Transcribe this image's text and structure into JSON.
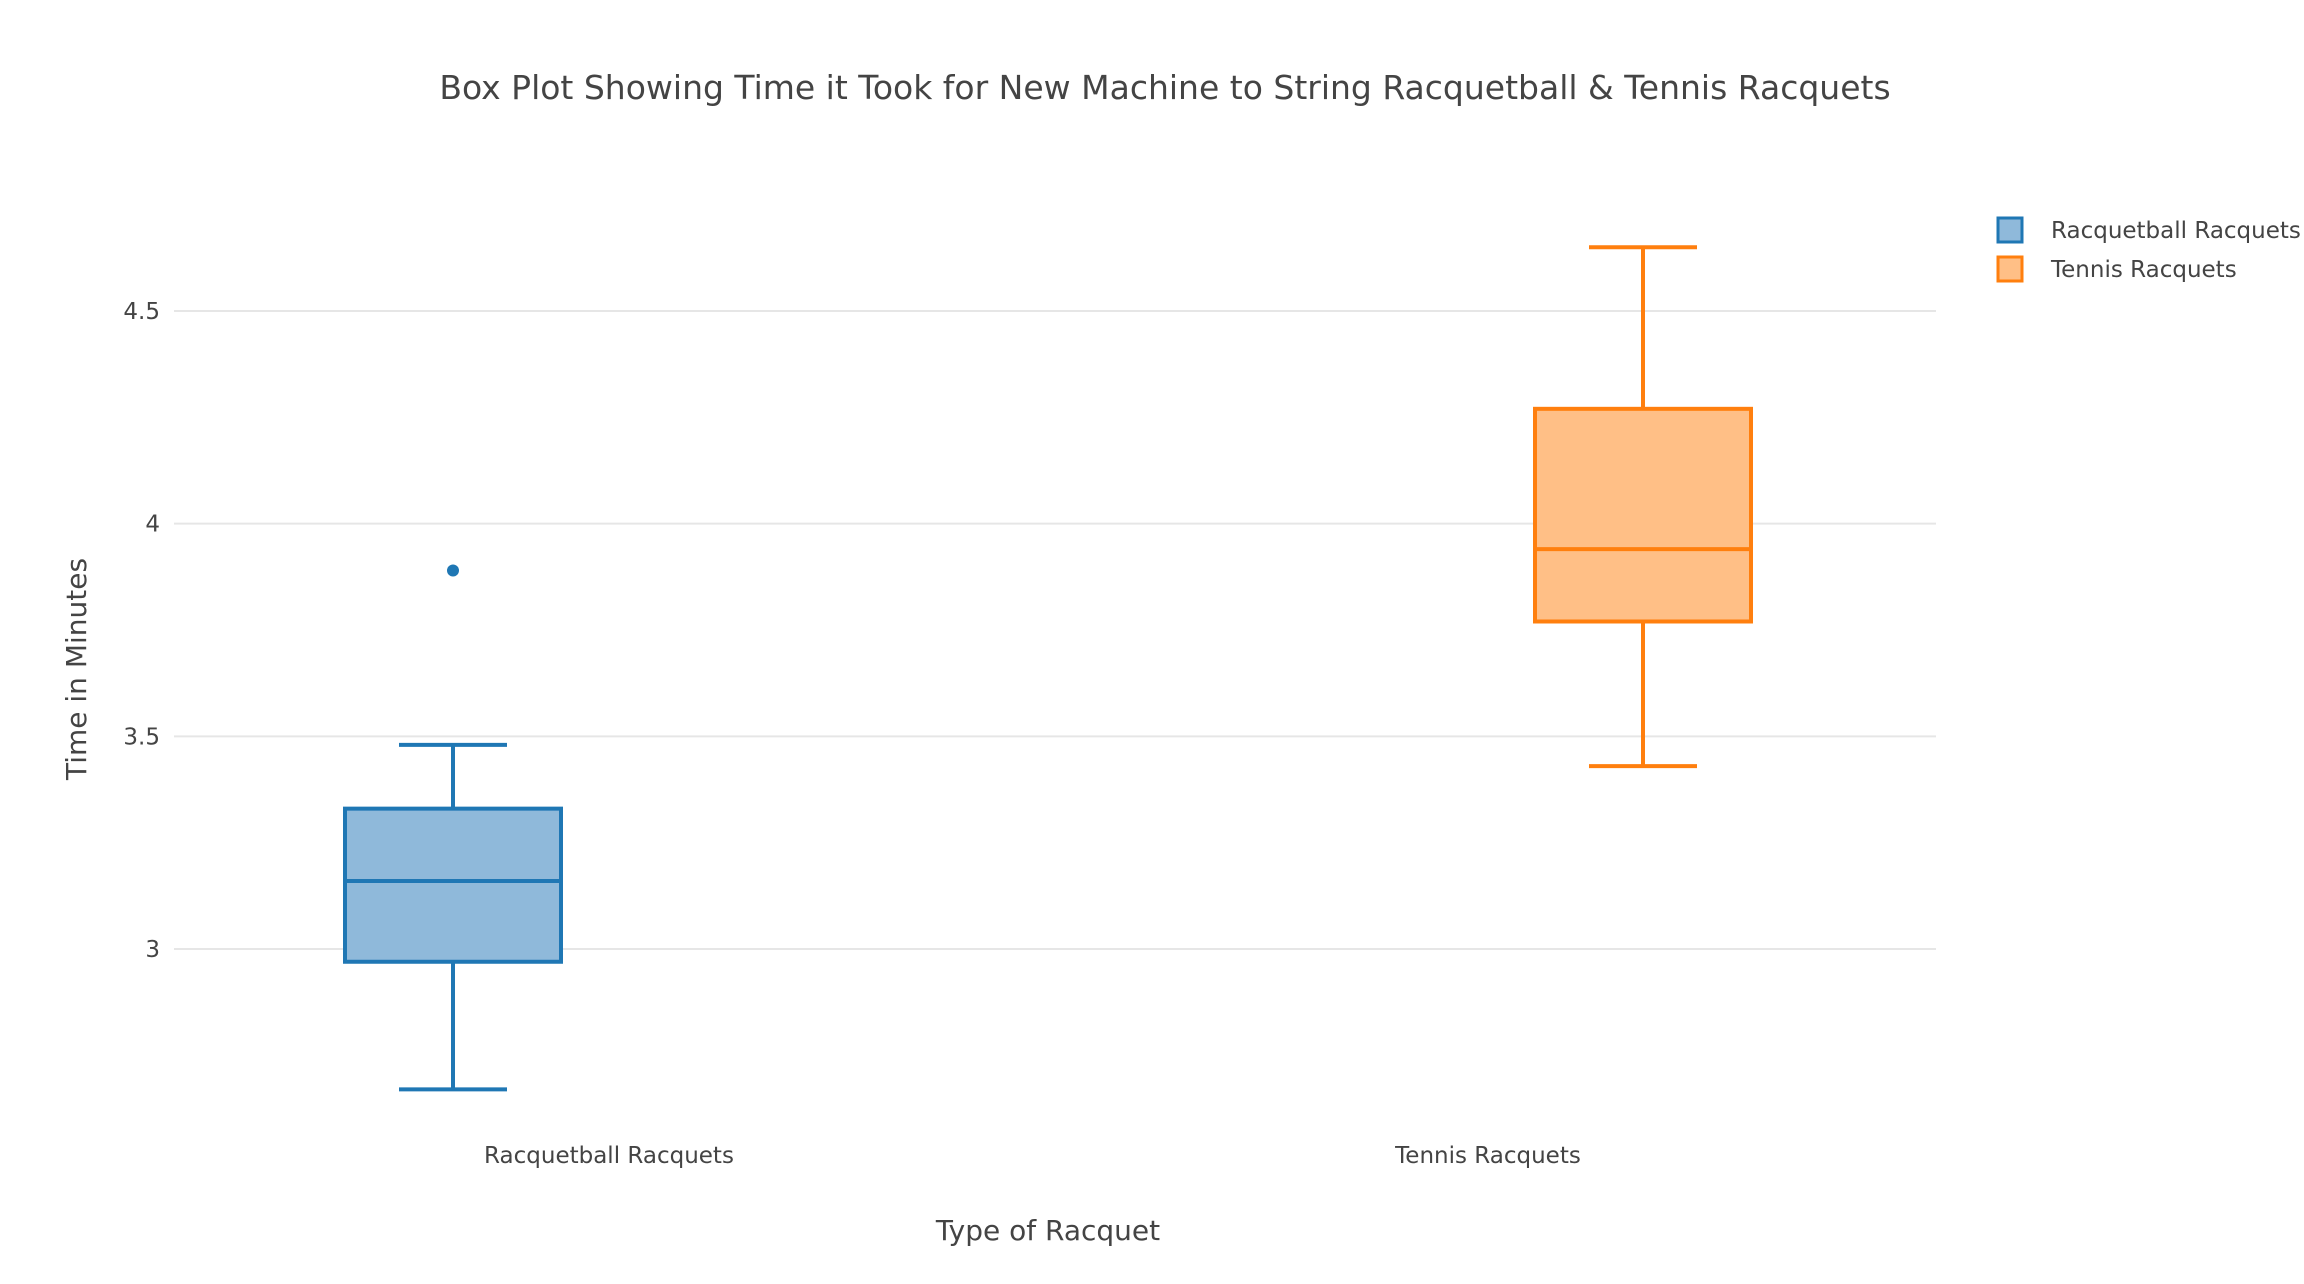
{
  "chart_data": {
    "type": "box",
    "title": "Box Plot Showing Time it Took for New Machine to String Racquetball & Tennis Racquets",
    "xlabel": "Type of Racquet",
    "ylabel": "Time in Minutes",
    "categories": [
      "Racquetball Racquets",
      "Tennis Racquets"
    ],
    "ylim": [
      2.6,
      4.8
    ],
    "yticks": [
      3,
      3.5,
      4,
      4.5
    ],
    "ytick_labels": [
      "3",
      "3.5",
      "4",
      "4.5"
    ],
    "grid": true,
    "legend_position": "top-right",
    "series": [
      {
        "name": "Racquetball Racquets",
        "category": "Racquetball Racquets",
        "min": 2.67,
        "q1": 2.97,
        "median": 3.16,
        "q3": 3.33,
        "max": 3.48,
        "outliers": [
          3.89
        ],
        "color": "#1f77b4",
        "fill": "#8fb9da"
      },
      {
        "name": "Tennis Racquets",
        "category": "Tennis Racquets",
        "min": 3.43,
        "q1": 3.77,
        "median": 3.94,
        "q3": 4.27,
        "max": 4.65,
        "outliers": [],
        "color": "#ff7f0e",
        "fill": "#ffbf86"
      }
    ]
  }
}
